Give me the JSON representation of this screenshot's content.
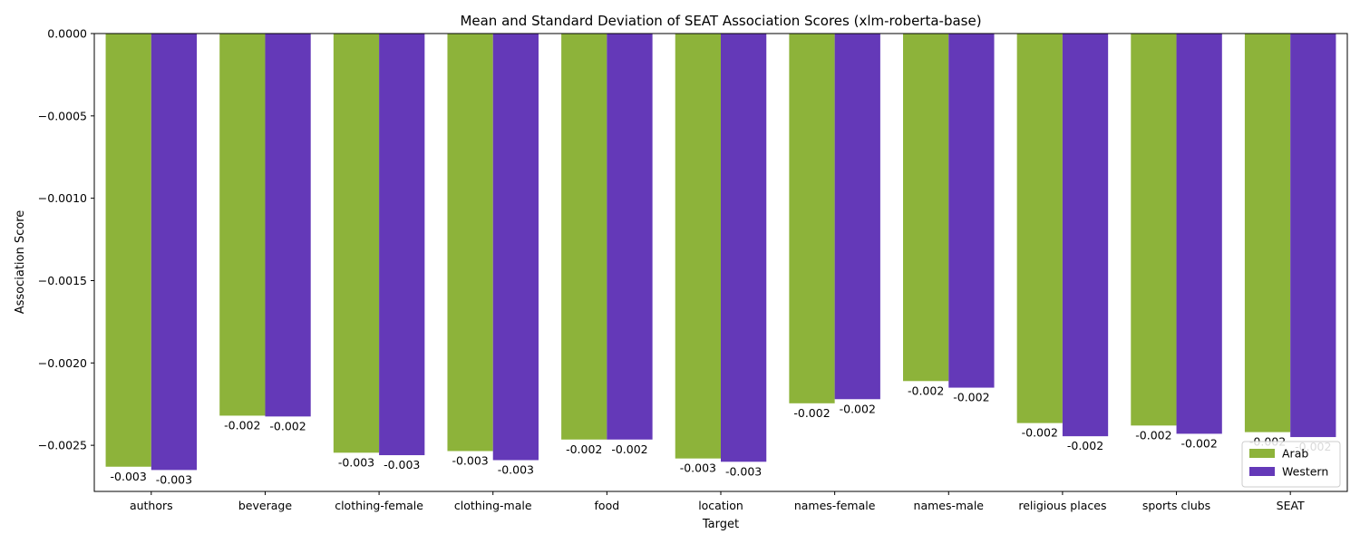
{
  "chart_data": {
    "type": "bar",
    "title": "Mean and Standard Deviation of SEAT Association Scores (xlm-roberta-base)",
    "xlabel": "Target",
    "ylabel": "Association Score",
    "categories": [
      "authors",
      "beverage",
      "clothing-female",
      "clothing-male",
      "food",
      "location",
      "names-female",
      "names-male",
      "religious places",
      "sports clubs",
      "SEAT"
    ],
    "series": [
      {
        "name": "Arab",
        "color": "#8db33a",
        "values": [
          -0.00263,
          -0.00232,
          -0.002545,
          -0.002535,
          -0.002465,
          -0.00258,
          -0.002245,
          -0.00211,
          -0.002365,
          -0.00238,
          -0.00242
        ],
        "labels": [
          "-0.003",
          "-0.002",
          "-0.003",
          "-0.003",
          "-0.002",
          "-0.003",
          "-0.002",
          "-0.002",
          "-0.002",
          "-0.002",
          "-0.002"
        ]
      },
      {
        "name": "Western",
        "color": "#6439b8",
        "values": [
          -0.00265,
          -0.002325,
          -0.00256,
          -0.00259,
          -0.002465,
          -0.0026,
          -0.00222,
          -0.00215,
          -0.002445,
          -0.00243,
          -0.00245
        ],
        "labels": [
          "-0.003",
          "-0.002",
          "-0.003",
          "-0.003",
          "-0.002",
          "-0.003",
          "-0.002",
          "-0.002",
          "-0.002",
          "-0.002",
          "-0.002"
        ]
      }
    ],
    "yticks": [
      0,
      -0.0005,
      -0.001,
      -0.0015,
      -0.002,
      -0.0025
    ],
    "ytick_labels": [
      "0.0000",
      "−0.0005",
      "−0.0010",
      "−0.0015",
      "−0.0020",
      "−0.0025"
    ],
    "ylim": [
      -0.00278,
      0
    ],
    "grid": false,
    "legend": "bottom-right"
  }
}
